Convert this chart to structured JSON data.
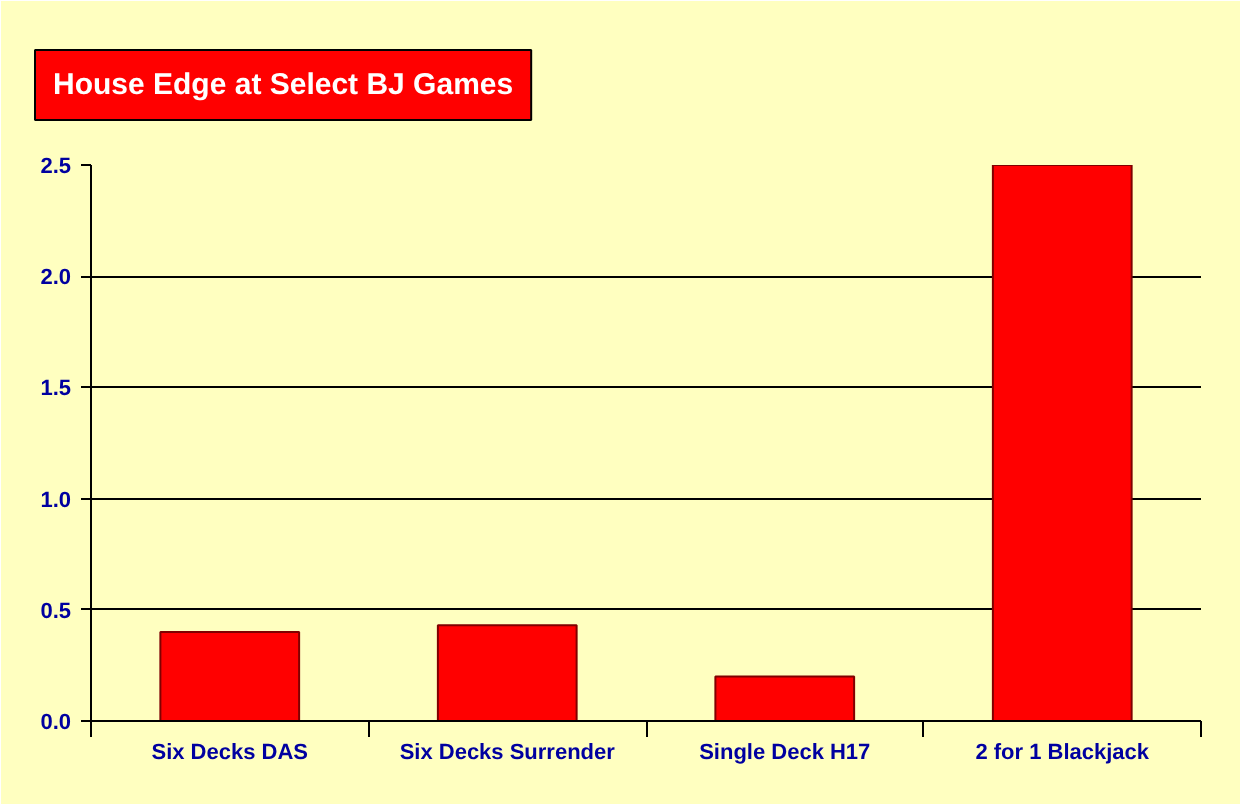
{
  "chart_data": {
    "type": "bar",
    "title": "House Edge at Select BJ Games",
    "categories": [
      "Six Decks DAS",
      "Six Decks Surrender",
      "Single Deck H17",
      "2 for 1 Blackjack"
    ],
    "values": [
      0.4,
      0.43,
      0.2,
      2.5
    ],
    "color": "#ff0000",
    "ylim": [
      0,
      2.5
    ],
    "yticks": [
      {
        "value": 0,
        "label": "0.0"
      },
      {
        "value": 0.5,
        "label": "0.5"
      },
      {
        "value": 1,
        "label": "1.0"
      },
      {
        "value": 1.5,
        "label": "1.5"
      },
      {
        "value": 2,
        "label": "2.0"
      },
      {
        "value": 2.5,
        "label": "2.5"
      }
    ],
    "grid": "y"
  }
}
